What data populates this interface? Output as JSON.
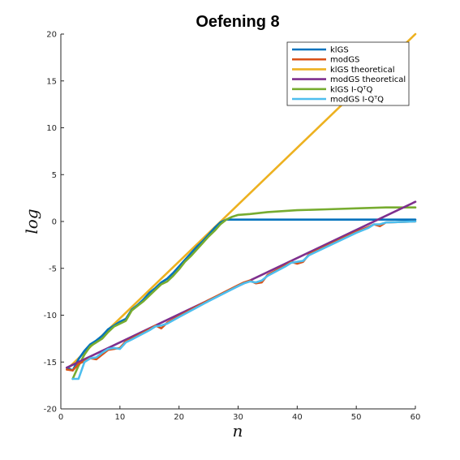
{
  "chart_data": {
    "type": "line",
    "title": "Oefening 8",
    "xlabel": "n",
    "ylabel": "log",
    "xlim": [
      0,
      60
    ],
    "ylim": [
      -20,
      20
    ],
    "x_ticks": [
      0,
      10,
      20,
      30,
      40,
      50,
      60
    ],
    "y_ticks": [
      -20,
      -15,
      -10,
      -5,
      0,
      5,
      10,
      15,
      20
    ],
    "x_tick_labels": [
      "0",
      "10",
      "20",
      "30",
      "40",
      "50",
      "60"
    ],
    "y_tick_labels": [
      "-20",
      "-15",
      "-10",
      "-5",
      "0",
      "5",
      "10",
      "15",
      "20"
    ],
    "grid": false,
    "legend_position": "top-right",
    "series": [
      {
        "name": "klGS",
        "color": "#0072BD",
        "x": [
          1,
          2,
          3,
          4,
          5,
          6,
          7,
          8,
          9,
          10,
          11,
          12,
          13,
          14,
          15,
          16,
          17,
          18,
          19,
          20,
          21,
          22,
          23,
          24,
          25,
          26,
          27,
          28,
          29,
          30,
          35,
          40,
          45,
          50,
          55,
          60
        ],
        "y": [
          -15.6,
          -15.9,
          -14.7,
          -13.8,
          -13.1,
          -12.7,
          -12.2,
          -11.5,
          -11.1,
          -10.7,
          -10.4,
          -9.4,
          -8.9,
          -8.3,
          -7.6,
          -7.1,
          -6.5,
          -6.1,
          -5.5,
          -4.8,
          -4.1,
          -3.4,
          -2.7,
          -2.1,
          -1.4,
          -0.7,
          -0.1,
          0.2,
          0.2,
          0.2,
          0.2,
          0.2,
          0.2,
          0.2,
          0.2,
          0.2
        ]
      },
      {
        "name": "modGS",
        "color": "#D95319",
        "x": [
          1,
          2,
          3,
          4,
          5,
          6,
          7,
          8,
          9,
          10,
          11,
          12,
          15,
          16,
          17,
          18,
          20,
          25,
          30,
          31,
          32,
          33,
          34,
          35,
          38,
          39,
          40,
          41,
          42,
          45,
          50,
          52,
          53,
          54,
          55,
          60
        ],
        "y": [
          -15.8,
          -15.9,
          -15.2,
          -14.9,
          -14.6,
          -14.7,
          -14.2,
          -13.7,
          -13.6,
          -13.5,
          -12.8,
          -12.5,
          -11.5,
          -11.1,
          -11.4,
          -10.8,
          -10.1,
          -8.4,
          -6.8,
          -6.5,
          -6.3,
          -6.6,
          -6.5,
          -5.7,
          -4.7,
          -4.3,
          -4.5,
          -4.3,
          -3.5,
          -2.6,
          -1.1,
          -0.6,
          -0.3,
          -0.5,
          -0.1,
          0.0
        ]
      },
      {
        "name": "klGS theoretical",
        "color": "#EDB120",
        "x": [
          1,
          60
        ],
        "y": [
          -15.8,
          20.0
        ]
      },
      {
        "name": "modGS theoretical",
        "color": "#7E2F8E",
        "x": [
          1,
          60
        ],
        "y": [
          -15.6,
          2.1
        ]
      },
      {
        "name": "klGS I-QᵀQ",
        "color": "#77AC30",
        "x": [
          2,
          3,
          4,
          5,
          6,
          7,
          8,
          9,
          10,
          11,
          12,
          13,
          14,
          15,
          16,
          17,
          18,
          19,
          20,
          21,
          22,
          23,
          24,
          25,
          26,
          27,
          28,
          29,
          30,
          32,
          35,
          40,
          45,
          50,
          55,
          60
        ],
        "y": [
          -16.8,
          -15.4,
          -14.2,
          -13.3,
          -12.9,
          -12.5,
          -11.8,
          -11.2,
          -10.9,
          -10.6,
          -9.5,
          -9.0,
          -8.5,
          -7.9,
          -7.3,
          -6.7,
          -6.4,
          -5.8,
          -5.1,
          -4.3,
          -3.7,
          -3.0,
          -2.3,
          -1.6,
          -1.0,
          -0.3,
          0.2,
          0.5,
          0.7,
          0.8,
          1.0,
          1.2,
          1.3,
          1.4,
          1.5,
          1.5
        ]
      },
      {
        "name": "modGS I-QᵀQ",
        "color": "#4DBEEE",
        "x": [
          2,
          3,
          4,
          5,
          6,
          7,
          8,
          9,
          10,
          11,
          12,
          15,
          16,
          17,
          18,
          20,
          25,
          30,
          31,
          32,
          33,
          34,
          35,
          38,
          39,
          40,
          41,
          42,
          45,
          50,
          52,
          53,
          54,
          55,
          60
        ],
        "y": [
          -16.8,
          -16.8,
          -15.0,
          -14.6,
          -14.5,
          -14.0,
          -13.6,
          -13.5,
          -13.6,
          -12.9,
          -12.6,
          -11.6,
          -11.2,
          -11.1,
          -10.9,
          -10.2,
          -8.5,
          -6.9,
          -6.6,
          -6.4,
          -6.5,
          -6.3,
          -5.8,
          -4.8,
          -4.4,
          -4.3,
          -4.2,
          -3.6,
          -2.7,
          -1.2,
          -0.7,
          -0.3,
          -0.3,
          -0.1,
          0.0
        ]
      }
    ]
  }
}
